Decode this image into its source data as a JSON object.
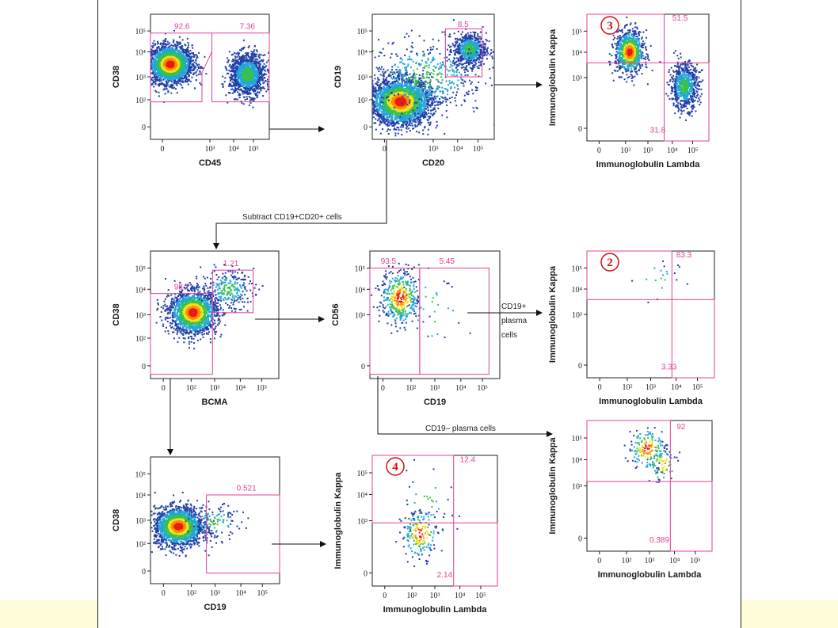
{
  "colors": {
    "gate": "#e0409a",
    "marker": "#cc1111",
    "density": [
      "#1f3ea8",
      "#23a6d6",
      "#36c24a",
      "#f0e020",
      "#ff8a00",
      "#e81c12"
    ]
  },
  "flow_labels": {
    "subtract": "Subtract CD19+CD20+ cells",
    "cd19_pos_1": "CD19+",
    "cd19_pos_2": "plasma",
    "cd19_pos_3": "cells",
    "cd19_neg": "CD19– plasma cells"
  },
  "chart_data": [
    {
      "id": "p1",
      "type": "scatter",
      "title": "",
      "xlabel": "CD45",
      "ylabel": "CD38",
      "x_ticks": [
        "0",
        "10³",
        "10⁴",
        "10⁵"
      ],
      "y_ticks": [
        "0",
        "10²",
        "10³",
        "10⁴",
        "10⁵"
      ],
      "xlim": [
        -1,
        5
      ],
      "ylim": [
        -1,
        5
      ],
      "populations": [
        {
          "cx": 0.0,
          "cy": 2.6,
          "sx": 0.55,
          "sy": 0.45,
          "n": 2600,
          "hot": true
        },
        {
          "cx": 3.9,
          "cy": 2.1,
          "sx": 0.45,
          "sy": 0.5,
          "n": 1300,
          "hot": false
        }
      ],
      "gates": [
        {
          "label": "92.6",
          "shape": "poly",
          "points": [
            [
              -1,
              4.1
            ],
            [
              2.1,
              4.1
            ],
            [
              2.1,
              3.2
            ],
            [
              1.6,
              2.2
            ],
            [
              1.6,
              0.8
            ],
            [
              -1,
              0.8
            ]
          ],
          "label_at": [
            0.2,
            4.3
          ]
        },
        {
          "label": "7.36",
          "shape": "rect",
          "x": [
            2.1,
            5
          ],
          "y": [
            0.8,
            4.1
          ],
          "label_at": [
            3.5,
            4.3
          ]
        }
      ]
    },
    {
      "id": "p2",
      "type": "scatter",
      "title": "",
      "xlabel": "CD20",
      "ylabel": "CD19",
      "x_ticks": [
        "0",
        "10³",
        "10⁴",
        "10⁵"
      ],
      "y_ticks": [
        "0",
        "10²",
        "10³",
        "10⁴",
        "10⁵"
      ],
      "xlim": [
        -1,
        5
      ],
      "ylim": [
        -1,
        5
      ],
      "populations": [
        {
          "cx": 0.4,
          "cy": 0.8,
          "sx": 0.75,
          "sy": 0.55,
          "n": 2800,
          "hot": true
        },
        {
          "cx": 3.8,
          "cy": 3.3,
          "sx": 0.4,
          "sy": 0.4,
          "n": 650,
          "hot": false
        },
        {
          "cx": 1.6,
          "cy": 2.0,
          "sx": 1.5,
          "sy": 0.9,
          "n": 500,
          "hot": false
        }
      ],
      "gates": [
        {
          "label": "8.5",
          "shape": "rect",
          "x": [
            2.6,
            4.4
          ],
          "y": [
            2.0,
            4.3
          ],
          "label_at": [
            3.2,
            4.4
          ]
        }
      ]
    },
    {
      "id": "p3",
      "type": "scatter",
      "title": "",
      "xlabel": "Immunoglobulin Lambda",
      "ylabel": "Immunoglobulin Kappa",
      "x_ticks": [
        "0",
        "10²",
        "10³",
        "10⁴",
        "10⁵"
      ],
      "y_ticks": [
        "0",
        "10³",
        "10⁴",
        "10⁵"
      ],
      "xlim": [
        -1,
        5
      ],
      "ylim": [
        -1,
        5
      ],
      "populations": [
        {
          "cx": 1.1,
          "cy": 3.2,
          "sx": 0.35,
          "sy": 0.5,
          "n": 900,
          "hot": true
        },
        {
          "cx": 3.8,
          "cy": 1.6,
          "sx": 0.35,
          "sy": 0.55,
          "n": 700,
          "hot": false
        }
      ],
      "gates": [
        {
          "label": "51.5",
          "shape": "rect",
          "x": [
            -1,
            2.8
          ],
          "y": [
            2.7,
            5
          ],
          "label_at": [
            3.2,
            4.7
          ]
        },
        {
          "label": "31.8",
          "shape": "rect",
          "x": [
            2.8,
            5
          ],
          "y": [
            -1,
            2.7
          ],
          "label_at": [
            2.1,
            -0.6
          ]
        }
      ],
      "marker": "3"
    },
    {
      "id": "p4",
      "type": "scatter",
      "title": "",
      "xlabel": "BCMA",
      "ylabel": "CD38",
      "x_ticks": [
        "0",
        "10²",
        "10³",
        "10⁴",
        "10⁵"
      ],
      "y_ticks": [
        "0",
        "10²",
        "10³",
        "10⁴",
        "10⁵"
      ],
      "xlim": [
        -1,
        5
      ],
      "ylim": [
        -1,
        5
      ],
      "populations": [
        {
          "cx": 1.0,
          "cy": 2.1,
          "sx": 0.55,
          "sy": 0.5,
          "n": 1800,
          "hot": true
        },
        {
          "cx": 2.6,
          "cy": 3.2,
          "sx": 0.6,
          "sy": 0.45,
          "n": 250,
          "hot": false
        }
      ],
      "gates": [
        {
          "label": "98.7",
          "shape": "rect",
          "x": [
            -1,
            1.9
          ],
          "y": [
            -0.8,
            3.0
          ],
          "label_at": [
            0.1,
            3.2
          ]
        },
        {
          "label": "1.21",
          "shape": "rect",
          "x": [
            1.9,
            3.8
          ],
          "y": [
            2.1,
            4.1
          ],
          "label_at": [
            2.4,
            4.3
          ]
        }
      ]
    },
    {
      "id": "p5",
      "type": "scatter",
      "title": "",
      "xlabel": "CD19",
      "ylabel": "CD56",
      "x_ticks": [
        "0",
        "10²",
        "10³",
        "10⁴",
        "10⁵"
      ],
      "y_ticks": [
        "0",
        "10³",
        "10⁴",
        "10⁵"
      ],
      "xlim": [
        -1,
        5
      ],
      "ylim": [
        -1,
        5
      ],
      "populations": [
        {
          "cx": 0.4,
          "cy": 2.8,
          "sx": 0.45,
          "sy": 0.65,
          "n": 420,
          "hot": true
        },
        {
          "cx": 1.9,
          "cy": 2.2,
          "sx": 0.8,
          "sy": 1.0,
          "n": 35,
          "hot": false
        }
      ],
      "gates": [
        {
          "label": "93.5",
          "shape": "rect",
          "x": [
            -1,
            1.3
          ],
          "y": [
            -0.8,
            4.2
          ],
          "label_at": [
            -0.5,
            4.4
          ]
        },
        {
          "label": "5.45",
          "shape": "rect",
          "x": [
            1.3,
            4.5
          ],
          "y": [
            -0.8,
            4.2
          ],
          "label_at": [
            2.2,
            4.4
          ]
        }
      ]
    },
    {
      "id": "p6",
      "type": "scatter",
      "title": "",
      "xlabel": "Immunoglobulin Lambda",
      "ylabel": "Immunoglobulin Kappa",
      "x_ticks": [
        "0",
        "10²",
        "10³",
        "10⁴",
        "10⁵"
      ],
      "y_ticks": [
        "0",
        "10³",
        "10⁴",
        "10⁵"
      ],
      "xlim": [
        -1,
        5
      ],
      "ylim": [
        -1,
        5
      ],
      "populations": [
        {
          "cx": 2.3,
          "cy": 3.6,
          "sx": 0.5,
          "sy": 0.6,
          "n": 20,
          "hot": false
        }
      ],
      "gates": [
        {
          "label": "83.3",
          "shape": "rect",
          "x": [
            -1,
            3.0
          ],
          "y": [
            2.7,
            5
          ],
          "label_at": [
            3.2,
            4.7
          ]
        },
        {
          "label": "3.33",
          "shape": "rect",
          "x": [
            3.0,
            5
          ],
          "y": [
            -1,
            2.7
          ],
          "label_at": [
            2.5,
            -0.6
          ]
        }
      ],
      "marker": "2"
    },
    {
      "id": "p7",
      "type": "scatter",
      "title": "",
      "xlabel": "CD19",
      "ylabel": "CD38",
      "x_ticks": [
        "0",
        "10²",
        "10³",
        "10⁴",
        "10⁵"
      ],
      "y_ticks": [
        "0",
        "10²",
        "10³",
        "10⁴",
        "10⁵"
      ],
      "xlim": [
        -1,
        5
      ],
      "ylim": [
        -1,
        5
      ],
      "populations": [
        {
          "cx": 0.3,
          "cy": 1.7,
          "sx": 0.55,
          "sy": 0.45,
          "n": 2000,
          "hot": true
        },
        {
          "cx": 2.0,
          "cy": 1.9,
          "sx": 0.6,
          "sy": 0.4,
          "n": 120,
          "hot": false
        }
      ],
      "gates": [
        {
          "label": "0.521",
          "shape": "rect",
          "x": [
            1.6,
            5
          ],
          "y": [
            -0.5,
            3.2
          ],
          "label_at": [
            3.0,
            3.4
          ]
        }
      ]
    },
    {
      "id": "p8",
      "type": "scatter",
      "title": "",
      "xlabel": "Immunoglobulin Lambda",
      "ylabel": "Immunoglobulin Kappa",
      "x_ticks": [
        "0",
        "10²",
        "10³",
        "10⁴",
        "10⁵"
      ],
      "y_ticks": [
        "0",
        "10³",
        "10⁴",
        "10⁵"
      ],
      "xlim": [
        -1,
        5
      ],
      "ylim": [
        -1,
        5
      ],
      "populations": [
        {
          "cx": 1.3,
          "cy": 1.4,
          "sx": 0.45,
          "sy": 0.55,
          "n": 180,
          "hot": true
        },
        {
          "cx": 1.6,
          "cy": 2.9,
          "sx": 0.7,
          "sy": 0.8,
          "n": 40,
          "hot": false
        }
      ],
      "gates": [
        {
          "label": "12.4",
          "shape": "rect",
          "x": [
            -1,
            2.9
          ],
          "y": [
            1.9,
            5
          ],
          "label_at": [
            3.2,
            4.7
          ]
        },
        {
          "label": "2.14",
          "shape": "rect",
          "x": [
            2.9,
            5
          ],
          "y": [
            -1,
            1.9
          ],
          "label_at": [
            2.1,
            -0.6
          ]
        }
      ],
      "marker": "4"
    },
    {
      "id": "p9",
      "type": "scatter",
      "title": "",
      "xlabel": "Immunoglobulin Lambda",
      "ylabel": "Immunoglobulin Kappa",
      "x_ticks": [
        "0",
        "10²",
        "10³",
        "10⁴",
        "10⁵"
      ],
      "y_ticks": [
        "0",
        "10³",
        "10⁴",
        "10⁵"
      ],
      "xlim": [
        -1,
        5
      ],
      "ylim": [
        -1,
        5
      ],
      "populations": [
        {
          "cx": 1.9,
          "cy": 3.7,
          "sx": 0.45,
          "sy": 0.5,
          "n": 170,
          "hot": true
        },
        {
          "cx": 2.6,
          "cy": 3.0,
          "sx": 0.35,
          "sy": 0.4,
          "n": 70,
          "hot": true
        }
      ],
      "gates": [
        {
          "label": "92",
          "shape": "rect",
          "x": [
            -1,
            3.0
          ],
          "y": [
            2.2,
            5
          ],
          "label_at": [
            3.3,
            4.6
          ]
        },
        {
          "label": "0.389",
          "shape": "rect",
          "x": [
            3.0,
            5
          ],
          "y": [
            -1,
            2.2
          ],
          "label_at": [
            2.0,
            -0.6
          ]
        }
      ]
    }
  ]
}
